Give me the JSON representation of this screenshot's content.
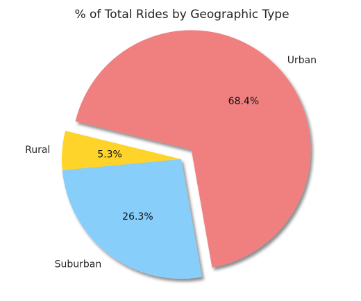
{
  "chart_data": {
    "type": "pie",
    "title": "% of Total Rides by Geographic Type",
    "slices": [
      {
        "label": "Urban",
        "value": 68.4,
        "pct_label": "68.4%",
        "color": "#F08080",
        "exploded": true
      },
      {
        "label": "Rural",
        "value": 5.3,
        "pct_label": "5.3%",
        "color": "#FFD42B",
        "exploded": false
      },
      {
        "label": "Suburban",
        "value": 26.3,
        "pct_label": "26.3%",
        "color": "#87CEFA",
        "exploded": false
      }
    ],
    "start_angle_deg": 280,
    "shadow": true,
    "legend": "none"
  }
}
